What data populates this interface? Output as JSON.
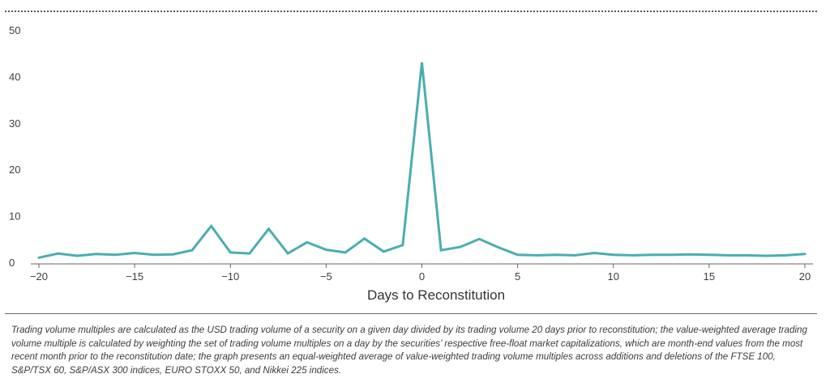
{
  "chart_data": {
    "type": "line",
    "title": "",
    "xlabel": "Days to Reconstitution",
    "ylabel": "",
    "x": [
      -20,
      -19,
      -18,
      -17,
      -16,
      -15,
      -14,
      -13,
      -12,
      -11,
      -10,
      -9,
      -8,
      -7,
      -6,
      -5,
      -4,
      -3,
      -2,
      -1,
      0,
      1,
      2,
      3,
      4,
      5,
      6,
      7,
      8,
      9,
      10,
      11,
      12,
      13,
      14,
      15,
      16,
      17,
      18,
      19,
      20
    ],
    "series": [
      {
        "name": "Value-weighted trading volume multiple",
        "color": "#4aaeb0",
        "values": [
          1.0,
          1.9,
          1.4,
          1.8,
          1.6,
          2.0,
          1.6,
          1.7,
          2.6,
          7.8,
          2.1,
          1.9,
          7.2,
          1.9,
          4.3,
          2.7,
          2.1,
          5.1,
          2.3,
          3.7,
          43.0,
          2.6,
          3.3,
          5.0,
          3.2,
          1.6,
          1.5,
          1.6,
          1.5,
          2.0,
          1.6,
          1.5,
          1.6,
          1.6,
          1.7,
          1.6,
          1.5,
          1.5,
          1.4,
          1.5,
          1.8
        ]
      }
    ],
    "xlim": [
      -20,
      20
    ],
    "ylim": [
      0,
      50
    ],
    "x_ticks": [
      -20,
      -15,
      -10,
      -5,
      0,
      5,
      10,
      15,
      20
    ],
    "x_tick_labels": [
      "−20",
      "−15",
      "−10",
      "−5",
      "0",
      "5",
      "10",
      "15",
      "20"
    ],
    "y_ticks": [
      0,
      10,
      20,
      30,
      40,
      50
    ],
    "y_tick_labels": [
      "0",
      "10",
      "20",
      "30",
      "40",
      "50"
    ],
    "grid": false,
    "legend": "none"
  },
  "footnote": "Trading volume multiples are calculated as the USD trading volume of a security on a given day divided by its trading volume 20 days prior to reconstitution; the value-weighted average trading volume multiple is calculated by weighting the set of trading volume multiples on a day by the securities’ respective free-float market capitalizations, which are month-end values from the most recent month prior to the reconstitution date; the graph presents an equal-weighted average of value-weighted trading volume multiples across additions and deletions of the FTSE 100, S&P/TSX 60, S&P/ASX 300 indices, EURO STOXX 50, and Nikkei 225 indices."
}
